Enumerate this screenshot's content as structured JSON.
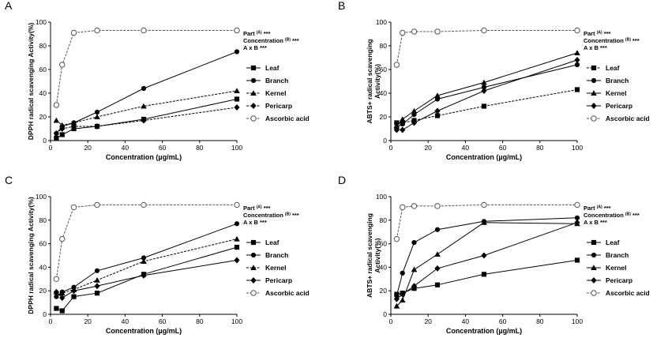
{
  "figure": {
    "background": "#ffffff",
    "axis_color": "#000000"
  },
  "chart_data": [
    {
      "panel": "A",
      "type": "line",
      "xlabel": "Concentration (µg/mL)",
      "ylabel": "DPPH radical scavenging Activity(%)",
      "xlim": [
        0,
        100
      ],
      "ylim": [
        0,
        100
      ],
      "xticks": [
        0,
        20,
        40,
        60,
        80,
        100
      ],
      "yticks": [
        0,
        20,
        40,
        60,
        80,
        100
      ],
      "grid": false,
      "legend_position": "right",
      "stats_text": [
        "Part (A) ***",
        "Concentration (B) ***",
        "A x B ***"
      ],
      "x": [
        3.125,
        6.25,
        12.5,
        25,
        50,
        100
      ],
      "series": [
        {
          "name": "Leaf",
          "marker": "square",
          "dash": false,
          "values": [
            2,
            5,
            10,
            12,
            18,
            35
          ]
        },
        {
          "name": "Branch",
          "marker": "circle",
          "dash": false,
          "values": [
            6,
            12,
            15,
            24,
            44,
            75
          ]
        },
        {
          "name": "Kernel",
          "marker": "triangle",
          "dash": true,
          "values": [
            17,
            13,
            15,
            20,
            29,
            42
          ]
        },
        {
          "name": "Pericarp",
          "marker": "diamond",
          "dash": true,
          "values": [
            6,
            10,
            12,
            12,
            17,
            28
          ]
        },
        {
          "name": "Ascorbic acid",
          "marker": "open-circle",
          "dash": true,
          "values": [
            30,
            64,
            91,
            93,
            93,
            93
          ]
        }
      ]
    },
    {
      "panel": "B",
      "type": "line",
      "xlabel": "Concentration (µg/mL)",
      "ylabel": "ABTS+ radical scavenging Activity(%)",
      "xlim": [
        0,
        100
      ],
      "ylim": [
        0,
        100
      ],
      "xticks": [
        0,
        20,
        40,
        60,
        80,
        100
      ],
      "yticks": [
        0,
        20,
        40,
        60,
        80,
        100
      ],
      "grid": false,
      "legend_position": "right",
      "stats_text": [
        "Part (A) ***",
        "Concentration (B) ***",
        "A x B ***"
      ],
      "x": [
        3.125,
        6.25,
        12.5,
        25,
        50,
        100
      ],
      "series": [
        {
          "name": "Leaf",
          "marker": "square",
          "dash": true,
          "values": [
            15,
            15,
            17,
            21,
            29,
            43
          ]
        },
        {
          "name": "Branch",
          "marker": "circle",
          "dash": false,
          "values": [
            11,
            14,
            22,
            35,
            45,
            64
          ]
        },
        {
          "name": "Kernel",
          "marker": "triangle",
          "dash": false,
          "values": [
            12,
            18,
            25,
            38,
            49,
            74
          ]
        },
        {
          "name": "Pericarp",
          "marker": "diamond",
          "dash": false,
          "values": [
            9,
            9,
            15,
            25,
            42,
            68
          ]
        },
        {
          "name": "Ascorbic acid",
          "marker": "open-circle",
          "dash": true,
          "values": [
            64,
            91,
            92,
            92,
            93,
            93
          ]
        }
      ]
    },
    {
      "panel": "C",
      "type": "line",
      "xlabel": "Concentration (µg/mL)",
      "ylabel": "DPPH radical scavenging Activity(%)",
      "xlim": [
        0,
        100
      ],
      "ylim": [
        0,
        100
      ],
      "xticks": [
        0,
        20,
        40,
        60,
        80,
        100
      ],
      "yticks": [
        0,
        20,
        40,
        60,
        80,
        100
      ],
      "grid": false,
      "legend_position": "right",
      "stats_text": [
        "Part (A) ***",
        "Concentration (B) ***",
        "A x B ***"
      ],
      "x": [
        3.125,
        6.25,
        12.5,
        25,
        50,
        100
      ],
      "series": [
        {
          "name": "Leaf",
          "marker": "square",
          "dash": false,
          "values": [
            5,
            3,
            15,
            18,
            34,
            57
          ]
        },
        {
          "name": "Branch",
          "marker": "circle",
          "dash": false,
          "values": [
            15,
            19,
            23,
            37,
            48,
            77
          ]
        },
        {
          "name": "Kernel",
          "marker": "triangle",
          "dash": true,
          "values": [
            19,
            18,
            21,
            29,
            45,
            64
          ]
        },
        {
          "name": "Pericarp",
          "marker": "diamond",
          "dash": false,
          "values": [
            19,
            14,
            20,
            24,
            33,
            46
          ]
        },
        {
          "name": "Ascorbic acid",
          "marker": "open-circle",
          "dash": true,
          "values": [
            30,
            64,
            91,
            93,
            93,
            93
          ]
        }
      ]
    },
    {
      "panel": "D",
      "type": "line",
      "xlabel": "Concentration (µg/mL)",
      "ylabel": "ABTS+ radical scavenging Activity(%)",
      "xlim": [
        0,
        100
      ],
      "ylim": [
        0,
        100
      ],
      "xticks": [
        0,
        20,
        40,
        60,
        80,
        100
      ],
      "yticks": [
        0,
        20,
        40,
        60,
        80,
        100
      ],
      "grid": false,
      "legend_position": "right",
      "stats_text": [
        "Part (A) ***",
        "Concentration (B) ***",
        "A x B ***"
      ],
      "x": [
        3.125,
        6.25,
        12.5,
        25,
        50,
        100
      ],
      "series": [
        {
          "name": "Leaf",
          "marker": "square",
          "dash": false,
          "values": [
            17,
            18,
            22,
            25,
            34,
            46
          ]
        },
        {
          "name": "Branch",
          "marker": "circle",
          "dash": false,
          "values": [
            16,
            35,
            61,
            72,
            79,
            82
          ]
        },
        {
          "name": "Kernel",
          "marker": "triangle",
          "dash": false,
          "values": [
            7,
            12,
            38,
            51,
            78,
            77
          ]
        },
        {
          "name": "Pericarp",
          "marker": "diamond",
          "dash": false,
          "values": [
            13,
            17,
            24,
            39,
            50,
            78
          ]
        },
        {
          "name": "Ascorbic acid",
          "marker": "open-circle",
          "dash": true,
          "values": [
            64,
            91,
            92,
            92,
            93,
            93
          ]
        }
      ]
    }
  ]
}
